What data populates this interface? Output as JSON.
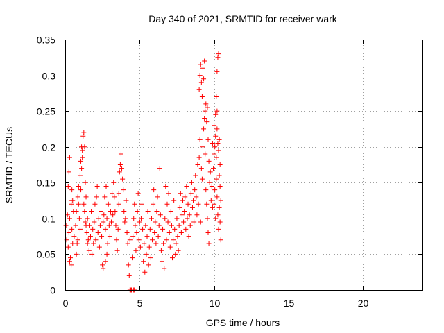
{
  "chart_data": {
    "type": "scatter",
    "title": "Day 340 of 2021, SRMTID for receiver wark",
    "xlabel": "GPS time / hours",
    "ylabel": "SRMTID / TECUs",
    "xlim": [
      0,
      24
    ],
    "ylim": [
      0,
      0.35
    ],
    "xticks": [
      0,
      5,
      10,
      15,
      20
    ],
    "xtick_labels": [
      "0",
      "5",
      "10",
      "15",
      "20"
    ],
    "yticks": [
      0,
      0.05,
      0.1,
      0.15,
      0.2,
      0.25,
      0.3,
      0.35
    ],
    "ytick_labels": [
      "0",
      "0.05",
      "0.1",
      "0.15",
      "0.2",
      "0.25",
      "0.3",
      "0.35"
    ],
    "grid": true,
    "marker": "+",
    "color": "#ff0000",
    "series": [
      {
        "name": "SRMTID",
        "points": [
          [
            0.05,
            0.09
          ],
          [
            0.1,
            0.07
          ],
          [
            0.15,
            0.105
          ],
          [
            0.2,
            0.06
          ],
          [
            0.25,
            0.08
          ],
          [
            0.3,
            0.1
          ],
          [
            0.35,
            0.045
          ],
          [
            0.4,
            0.12
          ],
          [
            0.45,
            0.085
          ],
          [
            0.5,
            0.065
          ],
          [
            0.2,
            0.145
          ],
          [
            0.25,
            0.165
          ],
          [
            0.3,
            0.185
          ],
          [
            0.4,
            0.125
          ],
          [
            0.45,
            0.14
          ],
          [
            0.55,
            0.11
          ],
          [
            0.6,
            0.075
          ],
          [
            0.3,
            0.04
          ],
          [
            0.4,
            0.035
          ],
          [
            0.5,
            0.125
          ],
          [
            0.7,
            0.09
          ],
          [
            0.75,
            0.11
          ],
          [
            0.8,
            0.065
          ],
          [
            0.85,
            0.13
          ],
          [
            0.9,
            0.145
          ],
          [
            0.95,
            0.1
          ],
          [
            1.0,
            0.085
          ],
          [
            0.75,
            0.05
          ],
          [
            0.85,
            0.07
          ],
          [
            0.9,
            0.12
          ],
          [
            1.0,
            0.16
          ],
          [
            1.05,
            0.18
          ],
          [
            1.1,
            0.2
          ],
          [
            1.15,
            0.195
          ],
          [
            1.2,
            0.215
          ],
          [
            1.25,
            0.22
          ],
          [
            1.1,
            0.17
          ],
          [
            1.05,
            0.14
          ],
          [
            1.15,
            0.185
          ],
          [
            1.3,
            0.2
          ],
          [
            1.3,
            0.11
          ],
          [
            1.35,
            0.095
          ],
          [
            1.4,
            0.13
          ],
          [
            1.45,
            0.08
          ],
          [
            1.5,
            0.1
          ],
          [
            1.55,
            0.07
          ],
          [
            1.35,
            0.15
          ],
          [
            1.25,
            0.12
          ],
          [
            1.4,
            0.09
          ],
          [
            1.5,
            0.065
          ],
          [
            1.6,
            0.055
          ],
          [
            1.65,
            0.09
          ],
          [
            1.7,
            0.075
          ],
          [
            1.75,
            0.11
          ],
          [
            1.8,
            0.05
          ],
          [
            1.85,
            0.085
          ],
          [
            1.9,
            0.065
          ],
          [
            1.95,
            0.095
          ],
          [
            2.0,
            0.12
          ],
          [
            2.05,
            0.07
          ],
          [
            2.1,
            0.13
          ],
          [
            2.15,
            0.145
          ],
          [
            2.2,
            0.08
          ],
          [
            2.25,
            0.1
          ],
          [
            2.3,
            0.06
          ],
          [
            2.35,
            0.09
          ],
          [
            2.4,
            0.11
          ],
          [
            2.45,
            0.075
          ],
          [
            2.5,
            0.035
          ],
          [
            2.55,
            0.095
          ],
          [
            2.6,
            0.105
          ],
          [
            2.65,
            0.13
          ],
          [
            2.7,
            0.085
          ],
          [
            2.75,
            0.145
          ],
          [
            2.8,
            0.1
          ],
          [
            2.85,
            0.065
          ],
          [
            2.9,
            0.12
          ],
          [
            2.95,
            0.09
          ],
          [
            3.0,
            0.075
          ],
          [
            3.05,
            0.11
          ],
          [
            2.55,
            0.03
          ],
          [
            2.7,
            0.04
          ],
          [
            2.8,
            0.05
          ],
          [
            3.1,
            0.095
          ],
          [
            3.15,
            0.135
          ],
          [
            3.2,
            0.105
          ],
          [
            3.3,
            0.13
          ],
          [
            3.25,
            0.15
          ],
          [
            3.35,
            0.11
          ],
          [
            3.4,
            0.09
          ],
          [
            3.45,
            0.07
          ],
          [
            3.5,
            0.055
          ],
          [
            3.55,
            0.085
          ],
          [
            3.6,
            0.12
          ],
          [
            3.65,
            0.165
          ],
          [
            3.7,
            0.175
          ],
          [
            3.75,
            0.19
          ],
          [
            3.8,
            0.17
          ],
          [
            3.85,
            0.155
          ],
          [
            3.6,
            0.135
          ],
          [
            3.9,
            0.14
          ],
          [
            3.95,
            0.11
          ],
          [
            4.0,
            0.095
          ],
          [
            4.05,
            0.1
          ],
          [
            4.1,
            0.125
          ],
          [
            4.15,
            0.08
          ],
          [
            4.2,
            0.065
          ],
          [
            4.25,
            0.035
          ],
          [
            4.3,
            0.02
          ],
          [
            4.35,
            0.07
          ],
          [
            4.35,
            0.0
          ],
          [
            4.4,
            0.0
          ],
          [
            4.45,
            0.0
          ],
          [
            4.55,
            0.0
          ],
          [
            4.6,
            0.0
          ],
          [
            4.65,
            0.0
          ],
          [
            4.5,
            0.045
          ],
          [
            4.55,
            0.075
          ],
          [
            4.6,
            0.1
          ],
          [
            4.65,
            0.12
          ],
          [
            4.7,
            0.09
          ],
          [
            4.75,
            0.055
          ],
          [
            4.8,
            0.08
          ],
          [
            4.85,
            0.11
          ],
          [
            4.9,
            0.135
          ],
          [
            4.95,
            0.07
          ],
          [
            5.0,
            0.095
          ],
          [
            5.05,
            0.06
          ],
          [
            5.1,
            0.1
          ],
          [
            5.15,
            0.12
          ],
          [
            5.2,
            0.085
          ],
          [
            5.25,
            0.04
          ],
          [
            5.3,
            0.065
          ],
          [
            5.35,
            0.025
          ],
          [
            5.4,
            0.09
          ],
          [
            5.45,
            0.05
          ],
          [
            5.5,
            0.075
          ],
          [
            5.55,
            0.11
          ],
          [
            5.6,
            0.035
          ],
          [
            5.65,
            0.06
          ],
          [
            5.7,
            0.085
          ],
          [
            5.75,
            0.045
          ],
          [
            5.8,
            0.1
          ],
          [
            5.85,
            0.07
          ],
          [
            5.9,
            0.12
          ],
          [
            5.95,
            0.14
          ],
          [
            6.0,
            0.08
          ],
          [
            6.05,
            0.095
          ],
          [
            6.1,
            0.065
          ],
          [
            6.15,
            0.11
          ],
          [
            6.2,
            0.13
          ],
          [
            6.25,
            0.075
          ],
          [
            6.3,
            0.09
          ],
          [
            6.35,
            0.17
          ],
          [
            6.4,
            0.105
          ],
          [
            6.45,
            0.055
          ],
          [
            6.5,
            0.04
          ],
          [
            6.55,
            0.085
          ],
          [
            6.6,
            0.065
          ],
          [
            6.65,
            0.03
          ],
          [
            6.7,
            0.1
          ],
          [
            6.75,
            0.145
          ],
          [
            6.8,
            0.07
          ],
          [
            6.85,
            0.12
          ],
          [
            6.9,
            0.095
          ],
          [
            6.95,
            0.135
          ],
          [
            7.0,
            0.08
          ],
          [
            7.05,
            0.06
          ],
          [
            7.1,
            0.11
          ],
          [
            7.15,
            0.09
          ],
          [
            7.2,
            0.045
          ],
          [
            7.25,
            0.07
          ],
          [
            7.3,
            0.125
          ],
          [
            7.35,
            0.085
          ],
          [
            7.4,
            0.05
          ],
          [
            7.45,
            0.065
          ],
          [
            7.5,
            0.1
          ],
          [
            7.55,
            0.075
          ],
          [
            7.6,
            0.055
          ],
          [
            7.65,
            0.09
          ],
          [
            7.7,
            0.115
          ],
          [
            7.75,
            0.135
          ],
          [
            7.8,
            0.08
          ],
          [
            7.85,
            0.105
          ],
          [
            7.9,
            0.125
          ],
          [
            7.95,
            0.095
          ],
          [
            8.0,
            0.11
          ],
          [
            8.05,
            0.13
          ],
          [
            8.1,
            0.085
          ],
          [
            8.15,
            0.145
          ],
          [
            8.2,
            0.1
          ],
          [
            8.25,
            0.12
          ],
          [
            8.3,
            0.075
          ],
          [
            8.35,
            0.105
          ],
          [
            8.4,
            0.09
          ],
          [
            8.45,
            0.135
          ],
          [
            8.5,
            0.15
          ],
          [
            8.55,
            0.115
          ],
          [
            8.6,
            0.125
          ],
          [
            8.65,
            0.095
          ],
          [
            8.7,
            0.14
          ],
          [
            8.75,
            0.16
          ],
          [
            8.8,
            0.13
          ],
          [
            8.85,
            0.105
          ],
          [
            8.9,
            0.175
          ],
          [
            8.95,
            0.12
          ],
          [
            9.0,
            0.185
          ],
          [
            9.05,
            0.21
          ],
          [
            9.1,
            0.095
          ],
          [
            9.15,
            0.17
          ],
          [
            9.0,
            0.28
          ],
          [
            9.05,
            0.3
          ],
          [
            9.1,
            0.315
          ],
          [
            9.15,
            0.29
          ],
          [
            9.2,
            0.27
          ],
          [
            9.25,
            0.31
          ],
          [
            9.3,
            0.295
          ],
          [
            9.35,
            0.32
          ],
          [
            9.4,
            0.25
          ],
          [
            9.45,
            0.26
          ],
          [
            9.2,
            0.155
          ],
          [
            9.25,
            0.2
          ],
          [
            9.3,
            0.225
          ],
          [
            9.35,
            0.24
          ],
          [
            9.4,
            0.19
          ],
          [
            9.45,
            0.14
          ],
          [
            9.5,
            0.235
          ],
          [
            9.55,
            0.255
          ],
          [
            9.6,
            0.21
          ],
          [
            9.65,
            0.18
          ],
          [
            9.5,
            0.12
          ],
          [
            9.55,
            0.1
          ],
          [
            9.6,
            0.08
          ],
          [
            9.65,
            0.065
          ],
          [
            9.7,
            0.15
          ],
          [
            9.75,
            0.165
          ],
          [
            9.8,
            0.125
          ],
          [
            9.85,
            0.145
          ],
          [
            9.9,
            0.115
          ],
          [
            9.95,
            0.17
          ],
          [
            10.0,
            0.19
          ],
          [
            10.05,
            0.2
          ],
          [
            10.1,
            0.215
          ],
          [
            10.15,
            0.185
          ],
          [
            10.2,
            0.225
          ],
          [
            10.25,
            0.205
          ],
          [
            10.3,
            0.195
          ],
          [
            10.35,
            0.21
          ],
          [
            10.4,
            0.175
          ],
          [
            10.0,
            0.12
          ],
          [
            10.05,
            0.14
          ],
          [
            10.1,
            0.1
          ],
          [
            10.15,
            0.155
          ],
          [
            10.2,
            0.13
          ],
          [
            10.25,
            0.105
          ],
          [
            10.3,
            0.085
          ],
          [
            10.35,
            0.115
          ],
          [
            10.4,
            0.095
          ],
          [
            10.45,
            0.07
          ],
          [
            10.1,
            0.245
          ],
          [
            10.15,
            0.27
          ],
          [
            10.2,
            0.305
          ],
          [
            10.25,
            0.325
          ],
          [
            10.3,
            0.33
          ],
          [
            10.2,
            0.25
          ],
          [
            10.35,
            0.16
          ],
          [
            10.45,
            0.125
          ],
          [
            10.0,
            0.23
          ],
          [
            10.4,
            0.145
          ],
          [
            9.9,
            0.205
          ]
        ]
      }
    ]
  }
}
